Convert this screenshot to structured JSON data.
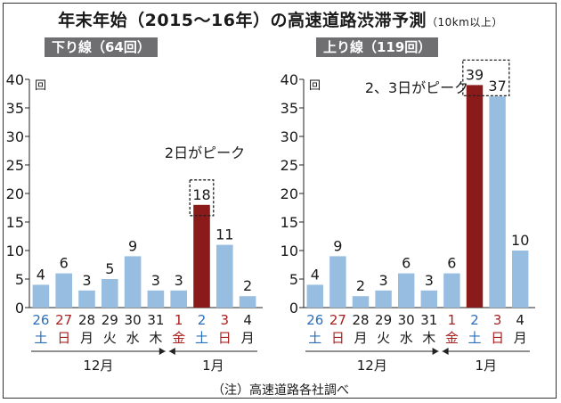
{
  "title": "年末年始（2015～16年）の高速道路渋滞予測",
  "title_note": "（10km以上）",
  "source": "（注）高速道路各社調べ",
  "colors": {
    "normal": "#97bde0",
    "peak": "#8b1a1a",
    "sat": "#2a6fb8",
    "sunhol": "#a8201f",
    "text": "#1a1a1a"
  },
  "chart_data": [
    {
      "type": "bar",
      "title": "下り線（64回）",
      "ylabel": "回",
      "ylim": [
        0,
        40
      ],
      "yticks": [
        0,
        5,
        10,
        15,
        20,
        25,
        30,
        35,
        40
      ],
      "categories": [
        {
          "day": "26",
          "weekday": "土",
          "kind": "sat"
        },
        {
          "day": "27",
          "weekday": "日",
          "kind": "sunhol"
        },
        {
          "day": "28",
          "weekday": "月",
          "kind": "normal"
        },
        {
          "day": "29",
          "weekday": "火",
          "kind": "normal"
        },
        {
          "day": "30",
          "weekday": "水",
          "kind": "normal"
        },
        {
          "day": "31",
          "weekday": "木",
          "kind": "normal"
        },
        {
          "day": "1",
          "weekday": "金",
          "kind": "sunhol"
        },
        {
          "day": "2",
          "weekday": "土",
          "kind": "sat"
        },
        {
          "day": "3",
          "weekday": "日",
          "kind": "sunhol"
        },
        {
          "day": "4",
          "weekday": "月",
          "kind": "normal"
        }
      ],
      "values": [
        4,
        6,
        3,
        5,
        9,
        3,
        3,
        18,
        11,
        2
      ],
      "peak": [
        7
      ],
      "annotation": "2日がピーク",
      "months": [
        {
          "label": "12月",
          "span": [
            0,
            5
          ]
        },
        {
          "label": "1月",
          "span": [
            6,
            9
          ]
        }
      ]
    },
    {
      "type": "bar",
      "title": "上り線（119回）",
      "ylabel": "回",
      "ylim": [
        0,
        40
      ],
      "yticks": [
        0,
        5,
        10,
        15,
        20,
        25,
        30,
        35,
        40
      ],
      "categories": [
        {
          "day": "26",
          "weekday": "土",
          "kind": "sat"
        },
        {
          "day": "27",
          "weekday": "日",
          "kind": "sunhol"
        },
        {
          "day": "28",
          "weekday": "月",
          "kind": "normal"
        },
        {
          "day": "29",
          "weekday": "火",
          "kind": "normal"
        },
        {
          "day": "30",
          "weekday": "水",
          "kind": "normal"
        },
        {
          "day": "31",
          "weekday": "木",
          "kind": "normal"
        },
        {
          "day": "1",
          "weekday": "金",
          "kind": "sunhol"
        },
        {
          "day": "2",
          "weekday": "土",
          "kind": "sat"
        },
        {
          "day": "3",
          "weekday": "日",
          "kind": "sunhol"
        },
        {
          "day": "4",
          "weekday": "月",
          "kind": "normal"
        }
      ],
      "values": [
        4,
        9,
        2,
        3,
        6,
        3,
        6,
        39,
        37,
        10
      ],
      "peak": [
        7
      ],
      "annotation": "2、3日がピーク",
      "months": [
        {
          "label": "12月",
          "span": [
            0,
            5
          ]
        },
        {
          "label": "1月",
          "span": [
            6,
            9
          ]
        }
      ]
    }
  ]
}
